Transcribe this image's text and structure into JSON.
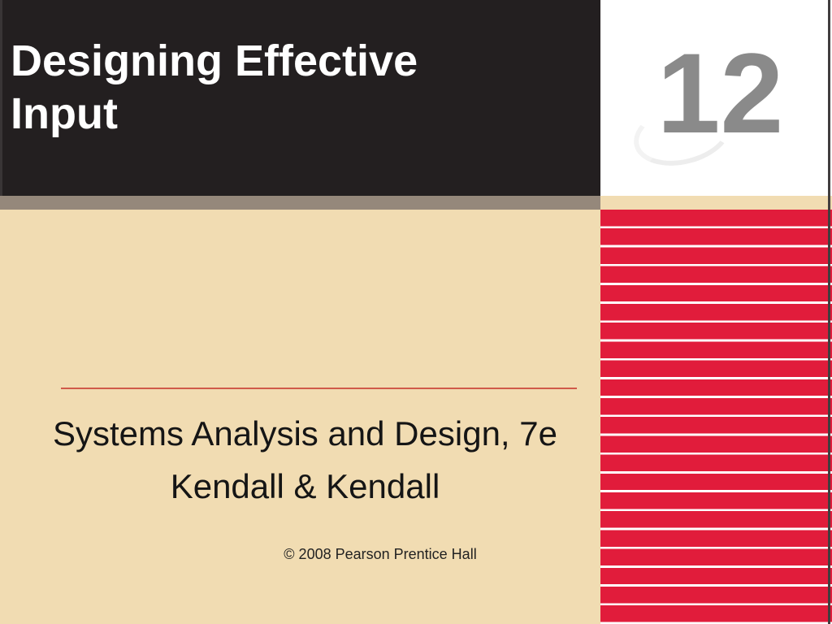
{
  "slide": {
    "title": "Designing Effective Input",
    "chapter_number": "12",
    "subtitle_line1": "Systems Analysis and Design, 7e",
    "subtitle_line2": "Kendall & Kendall",
    "copyright": "© 2008 Pearson Prentice Hall"
  },
  "colors": {
    "header_bg": "#231f20",
    "title_text": "#ffffff",
    "chapter_box_bg": "#ffffff",
    "chapter_number": "#8a8a8a",
    "body_bg": "#f1dcb2",
    "gray_stripe": "#95887b",
    "stripe_red": "#e11c3b",
    "stripe_gap": "#ffffff",
    "divider": "#d05a4a",
    "body_text": "#151515",
    "edge_border": "#413d3e"
  }
}
